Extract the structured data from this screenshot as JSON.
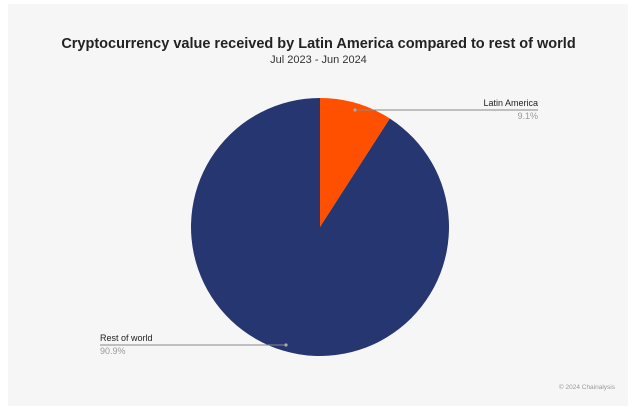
{
  "chart_data": {
    "type": "pie",
    "title": "Cryptocurrency value received by Latin America compared to rest of world",
    "subtitle": "Jul 2023 - Jun 2024",
    "slices": [
      {
        "label": "Latin America",
        "value": 9.1,
        "value_label": "9.1%",
        "color": "#ff5000"
      },
      {
        "label": "Rest of world",
        "value": 90.9,
        "value_label": "90.9%",
        "color": "#263670"
      }
    ],
    "credit": "© 2024 Chainalysis"
  }
}
